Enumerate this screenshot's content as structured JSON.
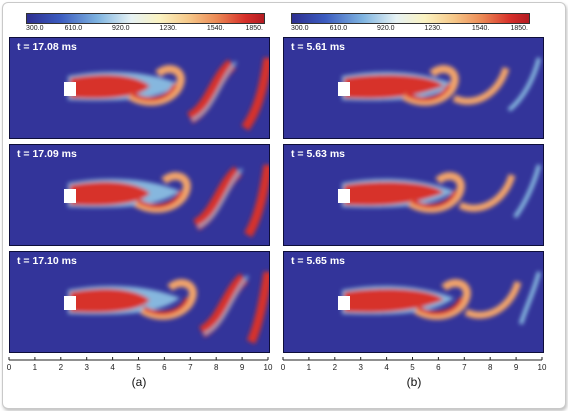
{
  "colorbar_left": {
    "ticks": [
      "300.0",
      "610.0",
      "920.0",
      "1230.",
      "1540.",
      "1850."
    ]
  },
  "colorbar_right": {
    "ticks": [
      "300.0",
      "610.0",
      "920.0",
      "1230.",
      "1540.",
      "1850."
    ]
  },
  "left_panels": [
    {
      "time": "t = 17.08 ms"
    },
    {
      "time": "t = 17.09 ms"
    },
    {
      "time": "t = 17.10 ms"
    }
  ],
  "right_panels": [
    {
      "time": "t = 5.61 ms"
    },
    {
      "time": "t = 5.63 ms"
    },
    {
      "time": "t = 5.65 ms"
    }
  ],
  "x_axis": {
    "ticks": [
      "0",
      "1",
      "2",
      "3",
      "4",
      "5",
      "6",
      "7",
      "8",
      "9",
      "10"
    ],
    "range": [
      0,
      10
    ]
  },
  "captions": {
    "left": "(a)",
    "right": "(b)"
  },
  "colors": {
    "background_field": "#33349a",
    "hot": "#d7302a",
    "warm": "#f3a46b",
    "cool": "#8fc5e6"
  }
}
